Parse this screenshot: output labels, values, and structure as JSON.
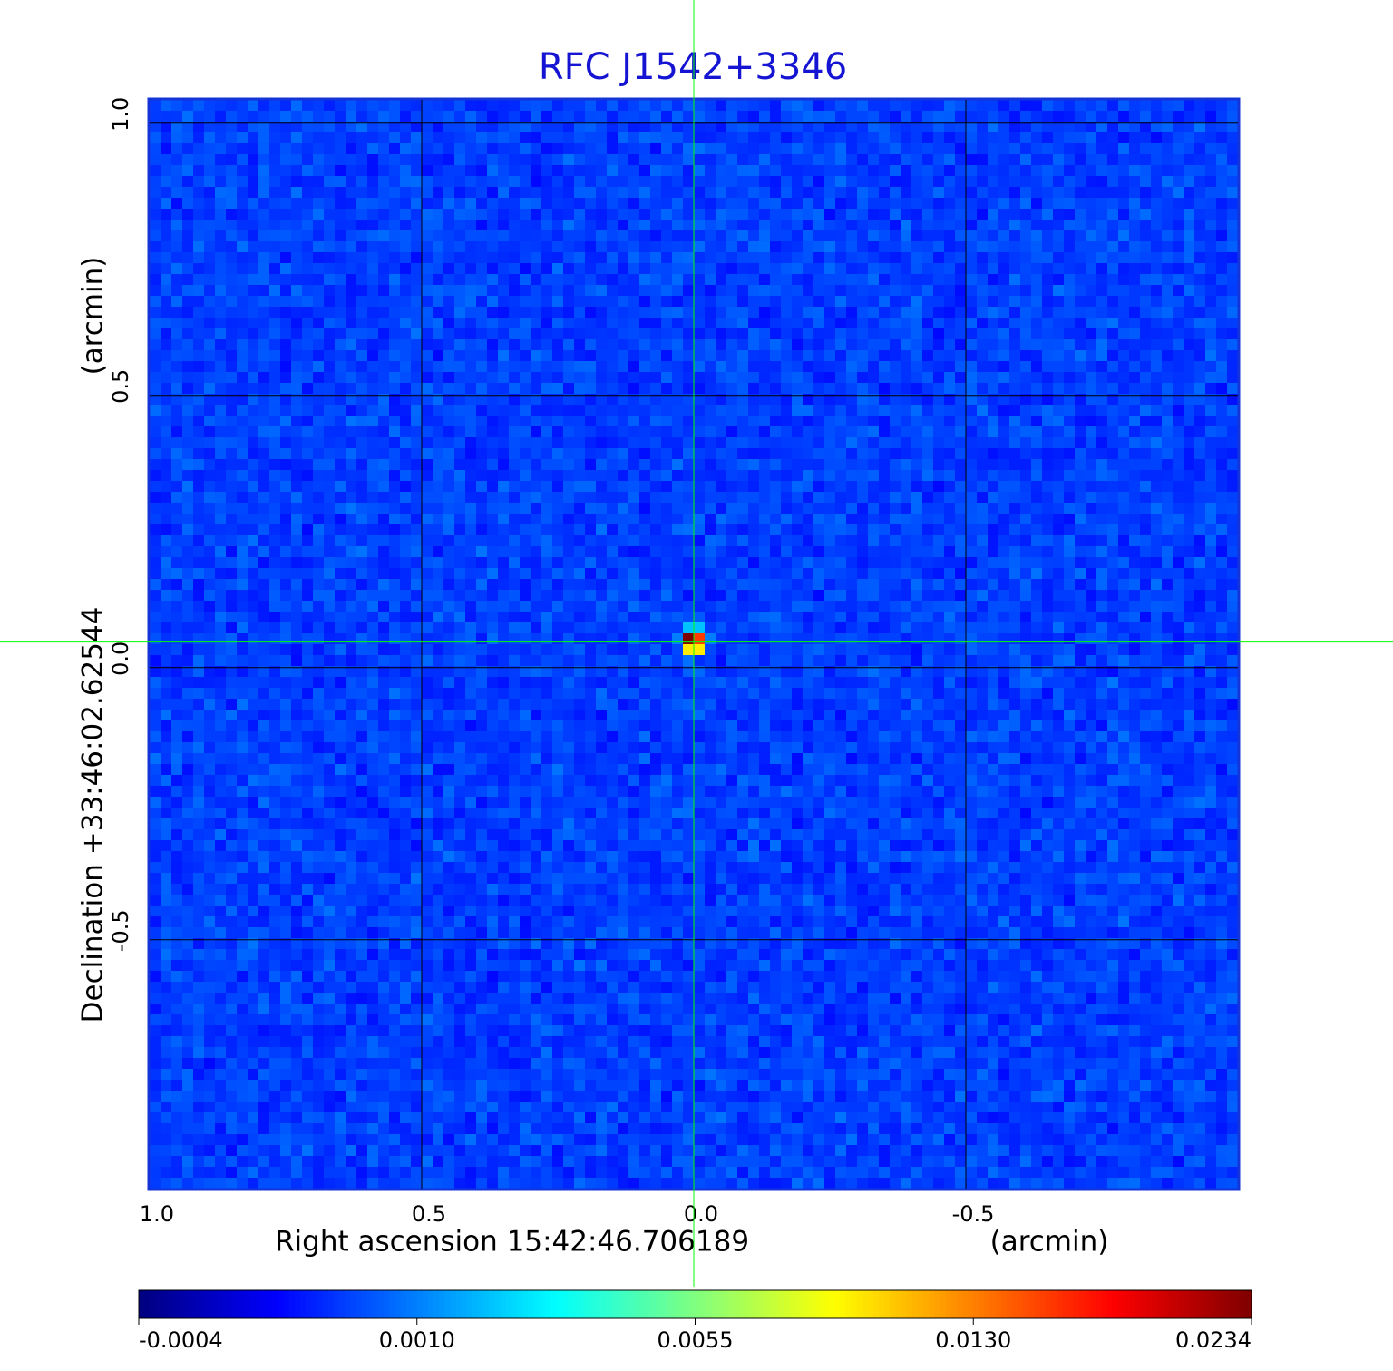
{
  "chart_data": {
    "type": "image",
    "title": "RFC J1542+3346",
    "xlabel": "Right ascension  15:42:46.706189",
    "xunit": "(arcmin)",
    "ylabel": "Declination  +33:46:02.62544",
    "yunit": "(arcmin)",
    "xlim": [
      1.0,
      -1.0
    ],
    "ylim": [
      -0.957,
      1.043
    ],
    "xticks": [
      {
        "value": 1,
        "label": "1.0"
      },
      {
        "value": 0.5,
        "label": "0.5"
      },
      {
        "value": 0,
        "label": "0.0"
      },
      {
        "value": -0.5,
        "label": "-0.5"
      }
    ],
    "yticks": [
      {
        "value": 1,
        "label": "1.0"
      },
      {
        "value": 0.5,
        "label": "0.5"
      },
      {
        "value": 0,
        "label": "0.0"
      },
      {
        "value": -0.5,
        "label": "-0.5"
      }
    ],
    "grid": true,
    "colormap": "jet",
    "colorbar_ticks": [
      -0.0004,
      {
        "value": 0.001,
        "label": "0.0010"
      },
      0.0055,
      {
        "value": 0.013,
        "label": "0.0130"
      },
      0.0234
    ],
    "crosshair": {
      "x": 0,
      "y": 0.047,
      "color": "#00ff00"
    },
    "source": {
      "x": 0,
      "y": 0.047,
      "peak": 0.0234
    }
  }
}
